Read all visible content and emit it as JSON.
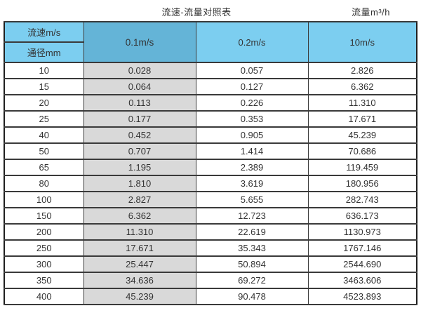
{
  "header": {
    "title": "流速-流量对照表",
    "unit_label": "流量m³/h"
  },
  "chart_data": {
    "type": "table",
    "title": "流速-流量对照表",
    "flow_unit": "流量m³/h",
    "corner_labels": {
      "velocity": "流速m/s",
      "diameter": "通径mm"
    },
    "velocity_columns": [
      "0.1m/s",
      "0.2m/s",
      "10m/s"
    ],
    "rows": [
      {
        "diameter_mm": "10",
        "flow_0_1": "0.028",
        "flow_0_2": "0.057",
        "flow_10": "2.826"
      },
      {
        "diameter_mm": "15",
        "flow_0_1": "0.064",
        "flow_0_2": "0.127",
        "flow_10": "6.362"
      },
      {
        "diameter_mm": "20",
        "flow_0_1": "0.113",
        "flow_0_2": "0.226",
        "flow_10": "11.310"
      },
      {
        "diameter_mm": "25",
        "flow_0_1": "0.177",
        "flow_0_2": "0.353",
        "flow_10": "17.671"
      },
      {
        "diameter_mm": "40",
        "flow_0_1": "0.452",
        "flow_0_2": "0.905",
        "flow_10": "45.239"
      },
      {
        "diameter_mm": "50",
        "flow_0_1": "0.707",
        "flow_0_2": "1.414",
        "flow_10": "70.686"
      },
      {
        "diameter_mm": "65",
        "flow_0_1": "1.195",
        "flow_0_2": "2.389",
        "flow_10": "119.459"
      },
      {
        "diameter_mm": "80",
        "flow_0_1": "1.810",
        "flow_0_2": "3.619",
        "flow_10": "180.956"
      },
      {
        "diameter_mm": "100",
        "flow_0_1": "2.827",
        "flow_0_2": "5.655",
        "flow_10": "282.743"
      },
      {
        "diameter_mm": "150",
        "flow_0_1": "6.362",
        "flow_0_2": "12.723",
        "flow_10": "636.173"
      },
      {
        "diameter_mm": "200",
        "flow_0_1": "11.310",
        "flow_0_2": "22.619",
        "flow_10": "1130.973"
      },
      {
        "diameter_mm": "250",
        "flow_0_1": "17.671",
        "flow_0_2": "35.343",
        "flow_10": "1767.146"
      },
      {
        "diameter_mm": "300",
        "flow_0_1": "25.447",
        "flow_0_2": "50.894",
        "flow_10": "2544.690"
      },
      {
        "diameter_mm": "350",
        "flow_0_1": "34.636",
        "flow_0_2": "69.272",
        "flow_10": "3463.606"
      },
      {
        "diameter_mm": "400",
        "flow_0_1": "45.239",
        "flow_0_2": "90.478",
        "flow_10": "4523.893"
      }
    ]
  },
  "colors": {
    "header_blue_light": "#7CCEF0",
    "header_blue_dark": "#64B4D7",
    "column_gray": "#D9D9D9",
    "border_dark": "#1F1F1F",
    "text": "#333333"
  }
}
